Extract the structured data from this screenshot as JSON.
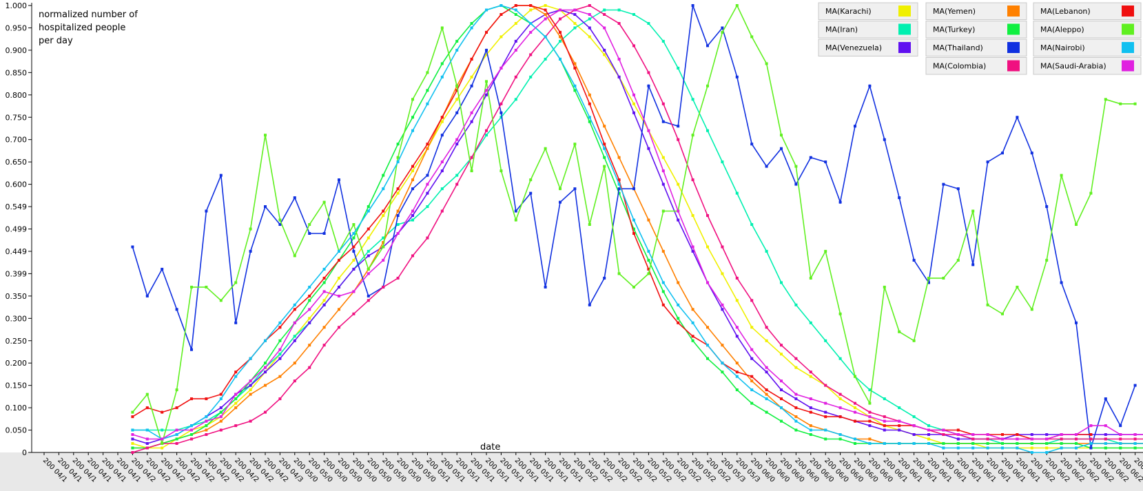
{
  "chart_data": {
    "type": "line",
    "ylabel_lines": [
      "normalized number of",
      "hospitalized people",
      "per day"
    ],
    "xlabel": "date",
    "ylim": [
      0,
      1.0
    ],
    "yticks": [
      "0",
      "0.050",
      "0.100",
      "0.150",
      "0.200",
      "0.250",
      "0.300",
      "0.350",
      "0.399",
      "0.449",
      "0.499",
      "0.549",
      "0.600",
      "0.650",
      "0.700",
      "0.750",
      "0.800",
      "0.850",
      "0.900",
      "0.950",
      "1.000"
    ],
    "grid": false,
    "legend_position": "top-right",
    "x_ticks": [
      "200 04/1",
      "200 04/1",
      "200 04/1",
      "200 04/1",
      "200 04/1",
      "200 04/1",
      "200 04/2",
      "200 04/2",
      "200 04/2",
      "200 04/2",
      "200 04/2",
      "200 04/2",
      "200 04/2",
      "200 04/2",
      "200 04/2",
      "200 04/2",
      "200 04/3",
      "200 05/0",
      "200 05/0",
      "200 05/0",
      "200 05/0",
      "200 05/0",
      "200 05/0",
      "200 05/0",
      "200 05/0",
      "200 05/0",
      "200 05/1",
      "200 05/1",
      "200 05/1",
      "200 05/1",
      "200 05/1",
      "200 05/1",
      "200 05/1",
      "200 05/1",
      "200 05/1",
      "200 05/1",
      "200 05/2",
      "200 05/2",
      "200 05/2",
      "200 05/2",
      "200 05/2",
      "200 05/2",
      "200 05/2",
      "200 05/2",
      "200 05/2",
      "200 05/2",
      "200 05/3",
      "200 05/3",
      "200 06/0",
      "200 06/0",
      "200 06/0",
      "200 06/0",
      "200 06/0",
      "200 06/0",
      "200 06/0",
      "200 06/0",
      "200 06/0",
      "200 06/1",
      "200 06/1",
      "200 06/1",
      "200 06/1",
      "200 06/1",
      "200 06/1",
      "200 06/1",
      "200 06/1",
      "200 06/1",
      "200 06/1",
      "200 06/2",
      "200 06/2",
      "200 06/2",
      "200 06/2",
      "200 06/2",
      "200 06/2",
      "200 06/2",
      "200 06/2",
      "200 06/2"
    ],
    "first_point_index": 6,
    "series": [
      {
        "name": "MA(Karachi)",
        "color": "#f0f000",
        "values": [
          0.02,
          0.01,
          0.01,
          0.03,
          0.05,
          0.06,
          0.08,
          0.11,
          0.14,
          0.18,
          0.22,
          0.26,
          0.3,
          0.34,
          0.39,
          0.43,
          0.48,
          0.53,
          0.58,
          0.63,
          0.68,
          0.74,
          0.79,
          0.84,
          0.89,
          0.93,
          0.96,
          0.99,
          1.0,
          0.99,
          0.96,
          0.93,
          0.89,
          0.84,
          0.78,
          0.72,
          0.66,
          0.6,
          0.53,
          0.46,
          0.4,
          0.34,
          0.28,
          0.25,
          0.22,
          0.19,
          0.17,
          0.15,
          0.12,
          0.1,
          0.08,
          0.06,
          0.05,
          0.04,
          0.03,
          0.02,
          0.02,
          0.02,
          0.01,
          0.01,
          0.01,
          0.01,
          0.01,
          0.01,
          0.01,
          0.01,
          0.01,
          0.01,
          0.01,
          0.01
        ]
      },
      {
        "name": "MA(Iran)",
        "color": "#00f0b0",
        "values": [
          0.05,
          0.05,
          0.05,
          0.05,
          0.06,
          0.07,
          0.09,
          0.12,
          0.15,
          0.19,
          0.22,
          0.26,
          0.29,
          0.33,
          0.37,
          0.41,
          0.45,
          0.48,
          0.51,
          0.52,
          0.55,
          0.59,
          0.62,
          0.66,
          0.71,
          0.75,
          0.79,
          0.84,
          0.88,
          0.92,
          0.95,
          0.97,
          0.99,
          0.99,
          0.98,
          0.96,
          0.92,
          0.86,
          0.79,
          0.72,
          0.65,
          0.58,
          0.51,
          0.45,
          0.38,
          0.33,
          0.29,
          0.25,
          0.21,
          0.17,
          0.14,
          0.12,
          0.1,
          0.08,
          0.06,
          0.05,
          0.04,
          0.03,
          0.03,
          0.02,
          0.02,
          0.02,
          0.02,
          0.03,
          0.03,
          0.03,
          0.03,
          0.02,
          0.02,
          0.02
        ]
      },
      {
        "name": "MA(Venezuela)",
        "color": "#6010f0",
        "values": [
          0.03,
          0.02,
          0.03,
          0.04,
          0.06,
          0.08,
          0.1,
          0.13,
          0.15,
          0.18,
          0.21,
          0.25,
          0.29,
          0.33,
          0.37,
          0.41,
          0.44,
          0.46,
          0.49,
          0.53,
          0.58,
          0.63,
          0.69,
          0.74,
          0.8,
          0.86,
          0.92,
          0.96,
          0.98,
          0.99,
          0.98,
          0.95,
          0.9,
          0.84,
          0.76,
          0.68,
          0.6,
          0.52,
          0.45,
          0.38,
          0.32,
          0.26,
          0.21,
          0.18,
          0.14,
          0.12,
          0.1,
          0.09,
          0.08,
          0.07,
          0.06,
          0.05,
          0.05,
          0.04,
          0.04,
          0.04,
          0.03,
          0.03,
          0.03,
          0.03,
          0.04,
          0.04,
          0.04,
          0.04,
          0.04,
          0.04,
          0.04,
          0.04,
          0.04,
          0.04
        ]
      },
      {
        "name": "MA(Yemen)",
        "color": "#ff8000",
        "values": [
          0.01,
          0.01,
          0.02,
          0.03,
          0.04,
          0.05,
          0.07,
          0.1,
          0.13,
          0.15,
          0.17,
          0.2,
          0.24,
          0.28,
          0.32,
          0.36,
          0.41,
          0.47,
          0.54,
          0.61,
          0.68,
          0.75,
          0.82,
          0.88,
          0.94,
          0.98,
          1.0,
          1.0,
          0.98,
          0.93,
          0.87,
          0.8,
          0.73,
          0.66,
          0.59,
          0.52,
          0.45,
          0.38,
          0.32,
          0.28,
          0.24,
          0.2,
          0.16,
          0.13,
          0.1,
          0.08,
          0.06,
          0.05,
          0.04,
          0.03,
          0.03,
          0.02,
          0.02,
          0.02,
          0.02,
          0.02,
          0.02,
          0.02,
          0.02,
          0.02,
          0.02,
          0.02,
          0.02,
          0.02,
          0.02,
          0.02,
          0.02,
          0.02,
          0.02,
          0.02
        ]
      },
      {
        "name": "MA(Turkey)",
        "color": "#10f040",
        "values": [
          0.01,
          0.01,
          0.02,
          0.03,
          0.04,
          0.06,
          0.09,
          0.12,
          0.16,
          0.2,
          0.25,
          0.29,
          0.34,
          0.38,
          0.43,
          0.48,
          0.55,
          0.62,
          0.69,
          0.75,
          0.81,
          0.87,
          0.92,
          0.96,
          0.99,
          1.0,
          0.98,
          0.96,
          0.93,
          0.88,
          0.81,
          0.74,
          0.66,
          0.58,
          0.5,
          0.43,
          0.36,
          0.3,
          0.25,
          0.21,
          0.18,
          0.14,
          0.11,
          0.09,
          0.07,
          0.05,
          0.04,
          0.03,
          0.03,
          0.02,
          0.02,
          0.02,
          0.02,
          0.02,
          0.02,
          0.02,
          0.02,
          0.02,
          0.02,
          0.02,
          0.02,
          0.02,
          0.02,
          0.02,
          0.02,
          0.01,
          0.01,
          0.01,
          0.01,
          0.01
        ]
      },
      {
        "name": "MA(Thailand)",
        "color": "#1030e0",
        "values": [
          0.46,
          0.35,
          0.41,
          0.32,
          0.23,
          0.54,
          0.62,
          0.29,
          0.45,
          0.55,
          0.51,
          0.57,
          0.49,
          0.49,
          0.61,
          0.45,
          0.35,
          0.37,
          0.53,
          0.59,
          0.62,
          0.71,
          0.76,
          0.82,
          0.9,
          0.76,
          0.54,
          0.58,
          0.37,
          0.56,
          0.59,
          0.33,
          0.39,
          0.59,
          0.59,
          0.82,
          0.74,
          0.73,
          1.0,
          0.91,
          0.95,
          0.84,
          0.69,
          0.64,
          0.68,
          0.6,
          0.66,
          0.65,
          0.56,
          0.73,
          0.82,
          0.7,
          0.57,
          0.43,
          0.38,
          0.6,
          0.59,
          0.42,
          0.65,
          0.67,
          0.75,
          0.67,
          0.55,
          0.38,
          0.29,
          0.01,
          0.12,
          0.06,
          0.15
        ]
      },
      {
        "name": "MA(Colombia)",
        "color": "#f01080",
        "values": [
          0.0,
          0.01,
          0.02,
          0.02,
          0.03,
          0.04,
          0.05,
          0.06,
          0.07,
          0.09,
          0.12,
          0.16,
          0.19,
          0.24,
          0.28,
          0.31,
          0.34,
          0.37,
          0.39,
          0.44,
          0.48,
          0.54,
          0.6,
          0.66,
          0.72,
          0.78,
          0.84,
          0.89,
          0.93,
          0.97,
          0.99,
          1.0,
          0.98,
          0.96,
          0.91,
          0.85,
          0.78,
          0.7,
          0.61,
          0.53,
          0.46,
          0.39,
          0.34,
          0.28,
          0.24,
          0.21,
          0.18,
          0.15,
          0.13,
          0.11,
          0.09,
          0.08,
          0.07,
          0.06,
          0.05,
          0.04,
          0.04,
          0.03,
          0.03,
          0.03,
          0.03,
          0.03,
          0.03,
          0.03,
          0.03,
          0.03,
          0.03,
          0.03,
          0.03,
          0.03
        ]
      },
      {
        "name": "MA(Lebanon)",
        "color": "#f01010",
        "values": [
          0.08,
          0.1,
          0.09,
          0.1,
          0.12,
          0.12,
          0.13,
          0.18,
          0.21,
          0.25,
          0.28,
          0.32,
          0.35,
          0.39,
          0.43,
          0.46,
          0.5,
          0.54,
          0.59,
          0.64,
          0.69,
          0.75,
          0.81,
          0.88,
          0.94,
          0.98,
          1.0,
          1.0,
          0.99,
          0.94,
          0.86,
          0.78,
          0.69,
          0.61,
          0.49,
          0.41,
          0.33,
          0.29,
          0.26,
          0.24,
          0.2,
          0.18,
          0.17,
          0.14,
          0.12,
          0.1,
          0.09,
          0.08,
          0.08,
          0.07,
          0.07,
          0.06,
          0.06,
          0.06,
          0.05,
          0.05,
          0.05,
          0.04,
          0.04,
          0.04,
          0.04,
          0.03,
          0.03,
          0.04,
          0.04,
          0.04
        ]
      },
      {
        "name": "MA(Aleppo)",
        "color": "#60f020",
        "values": [
          0.09,
          0.13,
          0.02,
          0.14,
          0.37,
          0.37,
          0.34,
          0.38,
          0.5,
          0.71,
          0.52,
          0.44,
          0.51,
          0.56,
          0.45,
          0.51,
          0.41,
          0.46,
          0.66,
          0.79,
          0.85,
          0.95,
          0.82,
          0.63,
          0.83,
          0.63,
          0.52,
          0.61,
          0.68,
          0.59,
          0.69,
          0.51,
          0.64,
          0.4,
          0.37,
          0.4,
          0.54,
          0.54,
          0.71,
          0.82,
          0.94,
          1.0,
          0.93,
          0.87,
          0.71,
          0.64,
          0.39,
          0.45,
          0.31,
          0.17,
          0.11,
          0.37,
          0.27,
          0.25,
          0.39,
          0.39,
          0.43,
          0.54,
          0.33,
          0.31,
          0.37,
          0.32,
          0.43,
          0.62,
          0.51,
          0.58,
          0.79,
          0.78,
          0.78
        ]
      },
      {
        "name": "MA(Nairobi)",
        "color": "#10c0f0",
        "values": [
          0.05,
          0.05,
          0.03,
          0.04,
          0.06,
          0.08,
          0.12,
          0.17,
          0.21,
          0.25,
          0.29,
          0.33,
          0.37,
          0.41,
          0.45,
          0.49,
          0.54,
          0.59,
          0.65,
          0.72,
          0.78,
          0.84,
          0.9,
          0.95,
          0.99,
          1.0,
          0.99,
          0.96,
          0.93,
          0.88,
          0.82,
          0.75,
          0.68,
          0.6,
          0.52,
          0.45,
          0.38,
          0.33,
          0.29,
          0.24,
          0.2,
          0.17,
          0.14,
          0.12,
          0.1,
          0.07,
          0.05,
          0.05,
          0.04,
          0.03,
          0.02,
          0.02,
          0.02,
          0.02,
          0.02,
          0.01,
          0.01,
          0.01,
          0.01,
          0.01,
          0.01,
          0.0,
          0.0,
          0.01,
          0.01,
          0.02,
          0.02,
          0.02,
          0.02,
          0.02
        ]
      },
      {
        "name": "MA(Saudi-Arabia)",
        "color": "#e020e0",
        "values": [
          0.04,
          0.03,
          0.03,
          0.05,
          0.05,
          0.07,
          0.08,
          0.13,
          0.16,
          0.19,
          0.23,
          0.29,
          0.32,
          0.36,
          0.35,
          0.36,
          0.4,
          0.43,
          0.49,
          0.54,
          0.6,
          0.65,
          0.7,
          0.76,
          0.81,
          0.86,
          0.9,
          0.94,
          0.97,
          0.99,
          0.99,
          0.98,
          0.95,
          0.88,
          0.8,
          0.72,
          0.63,
          0.54,
          0.46,
          0.38,
          0.33,
          0.28,
          0.23,
          0.19,
          0.16,
          0.13,
          0.12,
          0.11,
          0.1,
          0.09,
          0.08,
          0.07,
          0.07,
          0.06,
          0.05,
          0.05,
          0.04,
          0.04,
          0.04,
          0.03,
          0.03,
          0.03,
          0.03,
          0.04,
          0.04,
          0.06,
          0.06,
          0.04,
          0.04,
          0.04
        ]
      }
    ]
  }
}
